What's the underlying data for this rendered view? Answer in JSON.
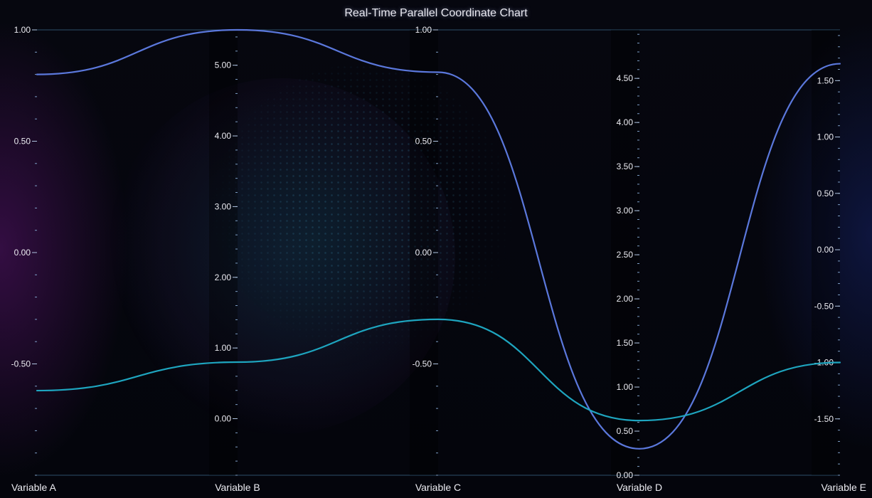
{
  "chart_data": {
    "type": "parallel_coordinates",
    "title": "Real-Time Parallel Coordinate Chart",
    "axes": [
      {
        "name": "Variable A",
        "min": -1.0,
        "max": 1.0,
        "ticks": [
          "1.00",
          "0.50",
          "0.00",
          "-0.50"
        ],
        "tick_values": [
          1.0,
          0.5,
          0.0,
          -0.5
        ]
      },
      {
        "name": "Variable B",
        "min": -0.8,
        "max": 5.5,
        "ticks": [
          "5.00",
          "4.00",
          "3.00",
          "2.00",
          "1.00",
          "0.00"
        ],
        "tick_values": [
          5,
          4,
          3,
          2,
          1,
          0
        ]
      },
      {
        "name": "Variable C",
        "min": -1.0,
        "max": 1.0,
        "ticks": [
          "1.00",
          "0.50",
          "0.00",
          "-0.50"
        ],
        "tick_values": [
          1.0,
          0.5,
          0.0,
          -0.5
        ]
      },
      {
        "name": "Variable D",
        "min": 0.0,
        "max": 5.05,
        "ticks": [
          "4.50",
          "4.00",
          "3.50",
          "3.00",
          "2.50",
          "2.00",
          "1.50",
          "1.00",
          "0.50",
          "0.00"
        ],
        "tick_values": [
          4.5,
          4.0,
          3.5,
          3.0,
          2.5,
          2.0,
          1.5,
          1.0,
          0.5,
          0.0
        ]
      },
      {
        "name": "Variable E",
        "min": -2.0,
        "max": 1.95,
        "ticks": [
          "1.50",
          "1.00",
          "0.50",
          "0.00",
          "-0.50",
          "-1.00",
          "-1.50"
        ],
        "tick_values": [
          1.5,
          1.0,
          0.5,
          0.0,
          -0.5,
          -1.0,
          -1.5
        ]
      }
    ],
    "series": [
      {
        "values": [
          0.8,
          5.5,
          0.81,
          0.3,
          1.65
        ],
        "color": "#5b78dc"
      },
      {
        "values": [
          -0.62,
          0.8,
          -0.3,
          0.62,
          -1.0
        ],
        "color": "#1ea5bf"
      }
    ]
  },
  "colors": {
    "axis_top": "#5fb4d4",
    "axis_bottom": "#c276d6",
    "title_text": "#e8e8f0"
  }
}
